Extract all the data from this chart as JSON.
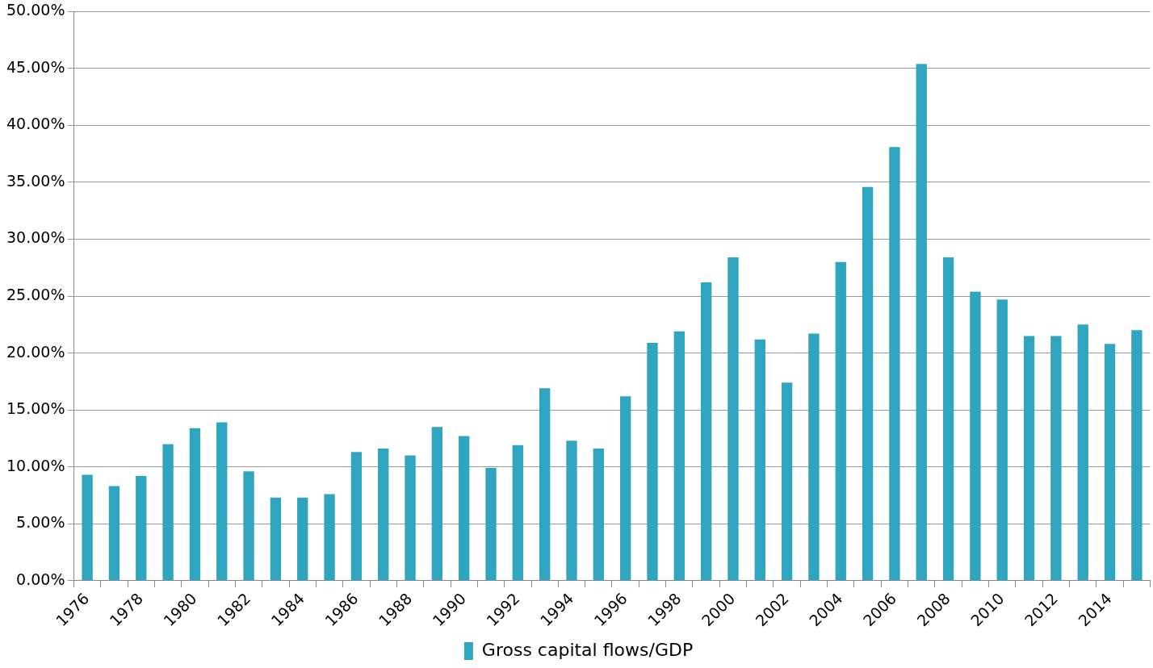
{
  "chart_data": {
    "type": "bar",
    "categories": [
      "1976",
      null,
      "1978",
      null,
      "1980",
      null,
      "1982",
      null,
      "1984",
      null,
      "1986",
      null,
      "1988",
      null,
      "1990",
      null,
      "1992",
      null,
      "1994",
      null,
      "1996",
      null,
      "1998",
      null,
      "2000",
      null,
      "2002",
      null,
      "2004",
      null,
      "2006",
      null,
      "2008",
      null,
      "2010",
      null,
      "2012",
      null,
      "2014",
      null
    ],
    "series": [
      {
        "name": "Gross capital flows/GDP",
        "color": "#2fa5c0",
        "values": [
          9.3,
          8.3,
          9.2,
          12.0,
          13.4,
          13.9,
          9.6,
          7.3,
          7.3,
          7.6,
          11.3,
          11.6,
          11.0,
          13.5,
          12.7,
          9.9,
          11.9,
          16.9,
          12.3,
          11.6,
          16.2,
          20.9,
          21.9,
          26.2,
          28.4,
          21.2,
          17.4,
          21.7,
          28.0,
          34.6,
          38.1,
          45.4,
          28.4,
          25.4,
          24.7,
          21.5,
          21.5,
          22.5,
          20.8,
          22.0
        ]
      }
    ],
    "ylim": [
      0,
      50
    ],
    "yticks": [
      {
        "value": 0,
        "label": "0.00%"
      },
      {
        "value": 5,
        "label": "5.00%"
      },
      {
        "value": 10,
        "label": "10.00%"
      },
      {
        "value": 15,
        "label": "15.00%"
      },
      {
        "value": 20,
        "label": "20.00%"
      },
      {
        "value": 25,
        "label": "25.00%"
      },
      {
        "value": 30,
        "label": "30.00%"
      },
      {
        "value": 35,
        "label": "35.00%"
      },
      {
        "value": 40,
        "label": "40.00%"
      },
      {
        "value": 45,
        "label": "45.00%"
      },
      {
        "value": 50,
        "label": "50.00%"
      }
    ],
    "grid": "y",
    "legend": "bottom"
  }
}
